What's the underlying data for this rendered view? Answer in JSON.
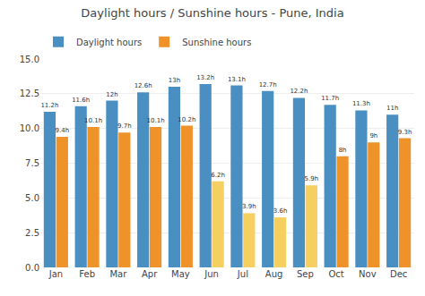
{
  "chart_data": {
    "type": "bar",
    "title": "Daylight hours / Sunshine hours - Pune, India",
    "categories": [
      "Jan",
      "Feb",
      "Mar",
      "Apr",
      "May",
      "Jun",
      "Jul",
      "Aug",
      "Sep",
      "Oct",
      "Nov",
      "Dec"
    ],
    "series": [
      {
        "name": "Daylight hours",
        "color": "#4a8fc2",
        "values": [
          11.2,
          11.6,
          12.0,
          12.6,
          13.0,
          13.2,
          13.1,
          12.7,
          12.2,
          11.7,
          11.3,
          11.0
        ],
        "value_labels": [
          "11.2h",
          "11.6h",
          "12h",
          "12.6h",
          "13h",
          "13.2h",
          "13.1h",
          "12.7h",
          "12.2h",
          "11.7h",
          "11.3h",
          "11h"
        ]
      },
      {
        "name": "Sunshine hours",
        "colors": [
          "#f0922a",
          "#f0922a",
          "#f0922a",
          "#f0922a",
          "#f0922a",
          "#f5cf60",
          "#f5cf60",
          "#f5cf60",
          "#f5cf60",
          "#f0922a",
          "#f0922a",
          "#f0922a"
        ],
        "values": [
          9.4,
          10.1,
          9.7,
          10.1,
          10.2,
          6.2,
          3.9,
          3.6,
          5.9,
          8.0,
          9.0,
          9.3
        ],
        "value_labels": [
          "9.4h",
          "10.1h",
          "9.7h",
          "10.1h",
          "10.2h",
          "6.2h",
          "3.9h",
          "3.6h",
          "5.9h",
          "8h",
          "9h",
          "9.3h"
        ]
      }
    ],
    "ylim": [
      0,
      15.0
    ],
    "yticks": [
      {
        "value": 0.0,
        "label": "0.0"
      },
      2.5,
      {
        "value": 5.0,
        "label": "5.0"
      },
      7.5,
      {
        "value": 10.0,
        "label": "10.0"
      },
      12.5,
      {
        "value": 15.0,
        "label": "15.0"
      }
    ],
    "grid": true,
    "legend": "upper left",
    "data_labels": true
  }
}
